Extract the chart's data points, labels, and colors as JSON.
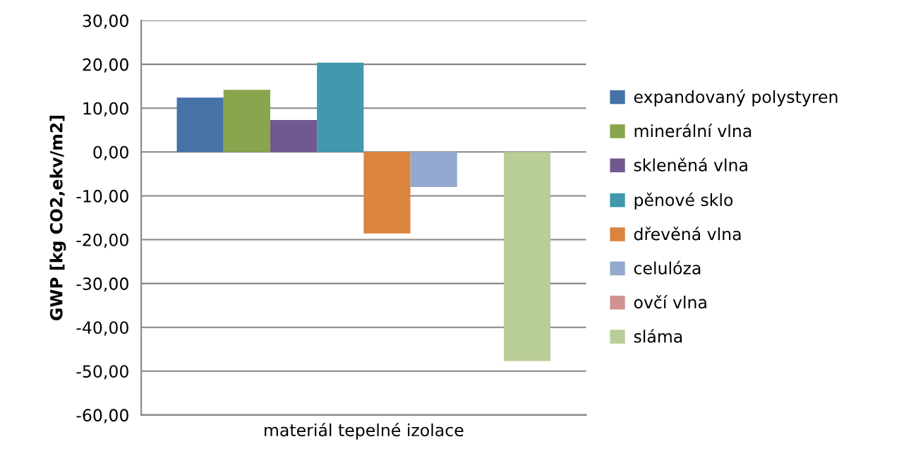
{
  "chart_data": {
    "type": "bar",
    "ylabel": "GWP [kg CO2,ekv/m2]",
    "categories": [
      "materiál tepelné izolace"
    ],
    "series": [
      {
        "name": "expandovaný polystyren",
        "color": "#4572a7",
        "values": [
          12.4
        ]
      },
      {
        "name": "minerální vlna",
        "color": "#89a54e",
        "values": [
          14.2
        ]
      },
      {
        "name": "skleněná vlna",
        "color": "#71588f",
        "values": [
          7.3
        ]
      },
      {
        "name": "pěnové sklo",
        "color": "#4198af",
        "values": [
          20.4
        ]
      },
      {
        "name": "dřevěná vlna",
        "color": "#db843d",
        "values": [
          -18.6
        ]
      },
      {
        "name": "celulóza",
        "color": "#93a9cf",
        "values": [
          -8.0
        ]
      },
      {
        "name": "ovčí vlna",
        "color": "#d19392",
        "values": [
          0
        ]
      },
      {
        "name": "sláma",
        "color": "#b9cd96",
        "values": [
          -47.7
        ]
      }
    ],
    "ylim": [
      -60,
      30
    ],
    "yticks": [
      {
        "value": -60,
        "label": "-60,00"
      },
      {
        "value": -50,
        "label": "-50,00"
      },
      {
        "value": -40,
        "label": "-40,00"
      },
      {
        "value": -30,
        "label": "-30,00"
      },
      {
        "value": -20,
        "label": "-20,00"
      },
      {
        "value": -10,
        "label": "-10,00"
      },
      {
        "value": 0,
        "label": "0,00"
      },
      {
        "value": 10,
        "label": "10,00"
      },
      {
        "value": 20,
        "label": "20,00"
      },
      {
        "value": 30,
        "label": "30,00"
      }
    ],
    "grid": "y",
    "legend": "right"
  }
}
